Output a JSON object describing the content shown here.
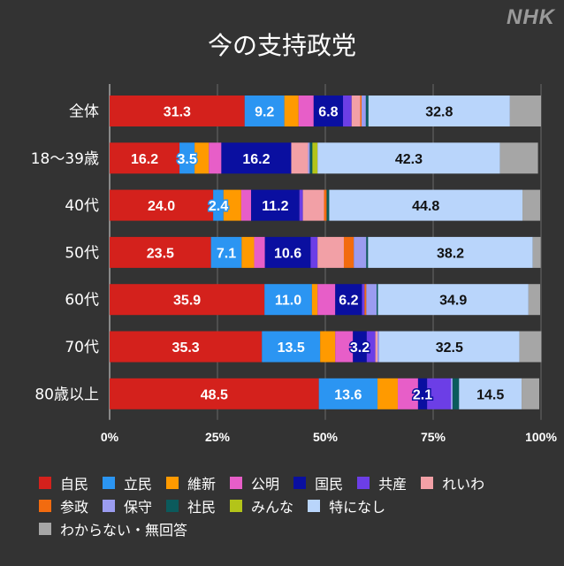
{
  "logo": "NHK",
  "chart_data": {
    "type": "bar",
    "orientation": "horizontal",
    "stacked": true,
    "title": "今の支持政党",
    "xlabel": "",
    "ylabel": "",
    "xlim": [
      0,
      100
    ],
    "xticks": [
      "0%",
      "25%",
      "50%",
      "75%",
      "100%"
    ],
    "grid": true,
    "legend_position": "bottom",
    "categories": [
      "全体",
      "18〜39歳",
      "40代",
      "50代",
      "60代",
      "70代",
      "80歳以上"
    ],
    "series": [
      {
        "name": "自民",
        "color": "#d4211c",
        "label_color": "#ffffff",
        "values": [
          31.3,
          16.2,
          24.0,
          23.5,
          35.9,
          35.3,
          48.5
        ],
        "labels": [
          "31.3",
          "16.2",
          "24.0",
          "23.5",
          "35.9",
          "35.3",
          "48.5"
        ]
      },
      {
        "name": "立民",
        "color": "#2b95f2",
        "label_color": "#ffffff",
        "values": [
          9.2,
          3.5,
          2.4,
          7.1,
          11.0,
          13.5,
          13.6
        ],
        "labels": [
          "9.2",
          "3.5",
          "2.4",
          "7.1",
          "11.0",
          "13.5",
          "13.6"
        ]
      },
      {
        "name": "維新",
        "color": "#ff9a00",
        "values": [
          3.3,
          3.3,
          4.1,
          2.9,
          1.3,
          3.5,
          4.7
        ]
      },
      {
        "name": "公明",
        "color": "#e75ec8",
        "values": [
          3.5,
          2.9,
          2.3,
          2.5,
          4.1,
          4.1,
          4.7
        ]
      },
      {
        "name": "国民",
        "color": "#0a0fa0",
        "label_color": "#ffffff",
        "values": [
          6.8,
          16.2,
          11.2,
          10.6,
          6.2,
          3.2,
          2.1
        ],
        "labels": [
          "6.8",
          "16.2",
          "11.2",
          "10.6",
          "6.2",
          "3.2",
          "2.1"
        ]
      },
      {
        "name": "共産",
        "color": "#6c3ee6",
        "values": [
          2.0,
          0.0,
          0.8,
          1.6,
          0.6,
          2.0,
          5.5
        ]
      },
      {
        "name": "れいわ",
        "color": "#f2a0a6",
        "values": [
          2.0,
          3.9,
          4.9,
          6.1,
          0.0,
          0.5,
          0.0
        ]
      },
      {
        "name": "参政",
        "color": "#f26b0f",
        "values": [
          0.3,
          0.0,
          0.6,
          2.3,
          0.4,
          0.0,
          0.0
        ]
      },
      {
        "name": "保守",
        "color": "#9b9cf0",
        "values": [
          1.0,
          0.4,
          0.0,
          2.9,
          2.4,
          0.4,
          0.4
        ]
      },
      {
        "name": "社民",
        "color": "#0b5a5c",
        "values": [
          0.6,
          0.6,
          0.6,
          0.4,
          0.3,
          0.0,
          1.5
        ]
      },
      {
        "name": "みんな",
        "color": "#b3c419",
        "values": [
          0.0,
          1.2,
          0.0,
          0.0,
          0.0,
          0.0,
          0.0
        ]
      },
      {
        "name": "特になし",
        "color": "#b9d5fb",
        "label_color": "#111111",
        "values": [
          32.8,
          42.3,
          44.8,
          38.2,
          34.9,
          32.5,
          14.5
        ],
        "labels": [
          "32.8",
          "42.3",
          "44.8",
          "38.2",
          "34.9",
          "32.5",
          "14.5"
        ]
      },
      {
        "name": "わからない・無回答",
        "color": "#a6a6a6",
        "values": [
          7.2,
          8.8,
          4.1,
          1.8,
          2.7,
          5.1,
          4.1
        ]
      }
    ]
  },
  "legend": {
    "rows": [
      [
        "自民",
        "立民",
        "維新",
        "公明",
        "国民",
        "共産",
        "れいわ"
      ],
      [
        "参政",
        "保守",
        "社民",
        "みんな",
        "特になし"
      ],
      [
        "わからない・無回答"
      ]
    ]
  }
}
